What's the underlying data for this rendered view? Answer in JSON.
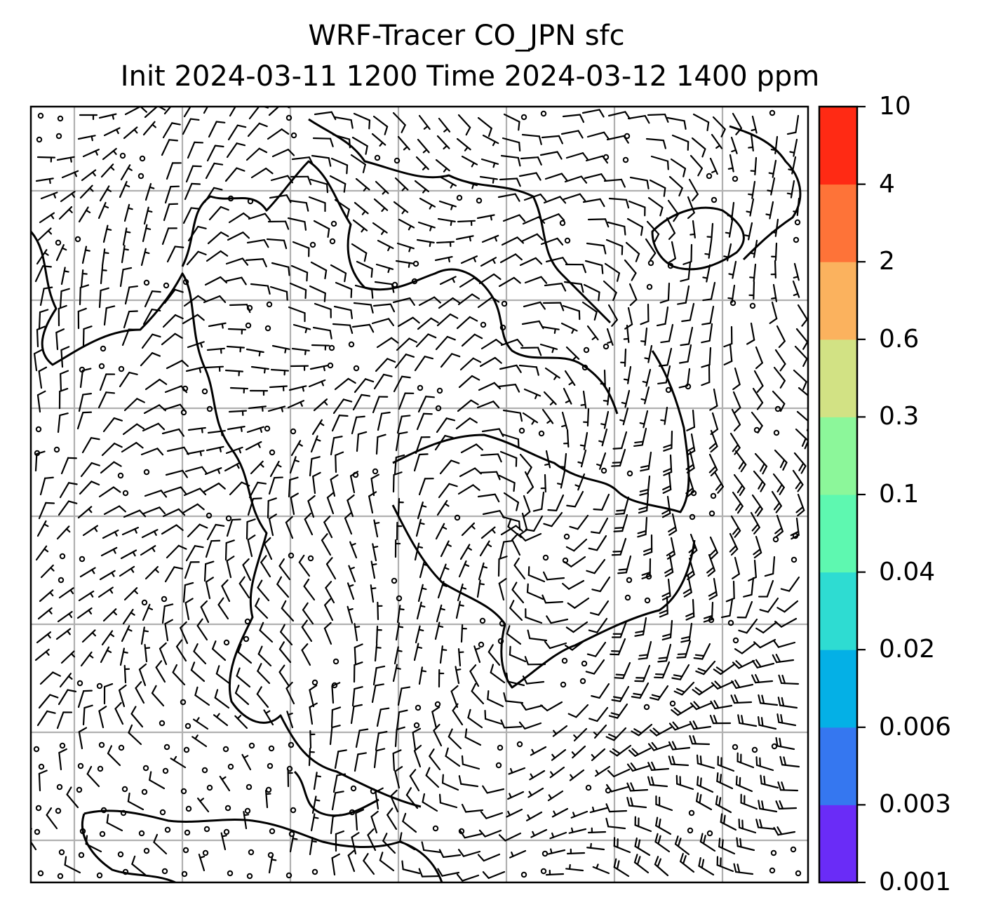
{
  "title": {
    "line1": "WRF-Tracer CO_JPN sfc",
    "line2": "Init 2024-03-11 1200 Time 2024-03-12 1400 ppm"
  },
  "colorbar": {
    "ticks": [
      "0.001",
      "0.003",
      "0.006",
      "0.02",
      "0.04",
      "0.1",
      "0.3",
      "0.6",
      "2",
      "4",
      "10"
    ],
    "colors": [
      "#6a2cf7",
      "#3577f0",
      "#04b0e6",
      "#2edcd2",
      "#5ef8b0",
      "#8cf79a",
      "#d2e284",
      "#fbb25e",
      "#fe7338",
      "#ff2a14"
    ]
  },
  "map": {
    "gridline_color": "#b0b0b0",
    "coastline_color": "#000000",
    "barb_color": "#000000"
  }
}
